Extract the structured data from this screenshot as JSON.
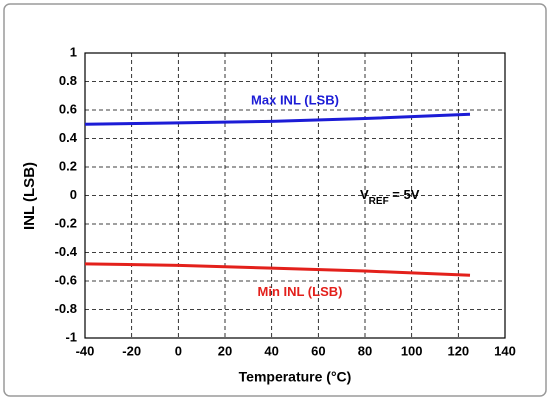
{
  "chart_data": {
    "type": "line",
    "xlabel": "Temperature (°C)",
    "ylabel": "INL (LSB)",
    "x": [
      -40,
      0,
      40,
      80,
      125
    ],
    "series": [
      {
        "name": "Max INL (LSB)",
        "color": "#1c1cd6",
        "values": [
          0.5,
          0.51,
          0.52,
          0.54,
          0.57
        ]
      },
      {
        "name": "Min INL (LSB)",
        "color": "#e3201b",
        "values": [
          -0.48,
          -0.49,
          -0.51,
          -0.53,
          -0.56
        ]
      }
    ],
    "annotation": {
      "main": "V",
      "sub": "REF",
      "rest": " = 5V"
    },
    "xlim": [
      -40,
      140
    ],
    "xticks": [
      -40,
      -20,
      0,
      20,
      40,
      60,
      80,
      100,
      120,
      140
    ],
    "ylim": [
      -1,
      1
    ],
    "yticks": [
      -1,
      -0.8,
      -0.6,
      -0.4,
      -0.2,
      0,
      0.2,
      0.4,
      0.6,
      0.8,
      1
    ],
    "grid": true
  }
}
